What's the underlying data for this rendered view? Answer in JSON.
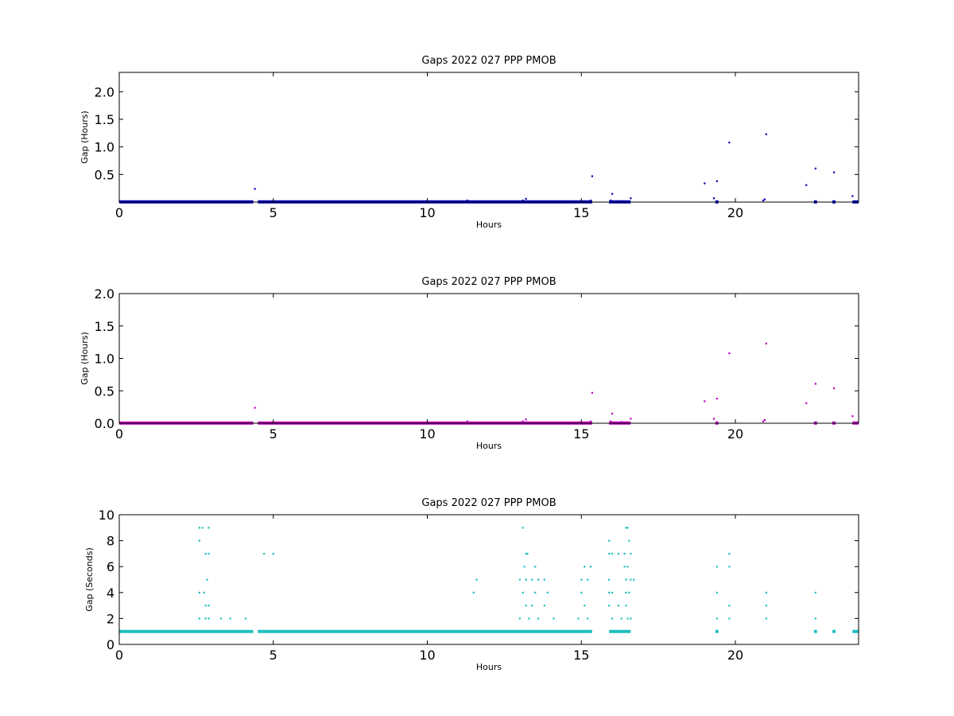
{
  "chart_data": [
    {
      "type": "scatter",
      "title": "Gaps 2022 027 PPP  PMOB",
      "xlabel": "Hours",
      "ylabel": "Gap (Hours)",
      "xlim": [
        0,
        24
      ],
      "ylim": [
        0,
        2.35
      ],
      "xticks": [
        0,
        5,
        10,
        15,
        20
      ],
      "yticks": [
        0.5,
        1.0,
        1.5,
        2.0
      ],
      "ytick_labels": [
        "0.5",
        "1.0",
        "1.5",
        "2.0"
      ],
      "color": "#0000bf",
      "grid": false,
      "baseline_segments": [
        [
          0,
          4.35
        ],
        [
          4.5,
          15.35
        ],
        [
          15.9,
          16.6
        ],
        [
          19.35,
          19.45
        ],
        [
          22.55,
          22.65
        ],
        [
          23.15,
          23.25
        ],
        [
          23.8,
          24
        ]
      ],
      "baseline_value": 0.003,
      "points": [
        [
          4.4,
          0.24
        ],
        [
          11.3,
          0.03
        ],
        [
          13.1,
          0.03
        ],
        [
          13.2,
          0.06
        ],
        [
          15.3,
          0.03
        ],
        [
          15.35,
          0.47
        ],
        [
          15.95,
          0.03
        ],
        [
          16.0,
          0.15
        ],
        [
          16.6,
          0.07
        ],
        [
          19.0,
          0.34
        ],
        [
          19.3,
          0.07
        ],
        [
          19.4,
          0.38
        ],
        [
          19.8,
          1.08
        ],
        [
          20.9,
          0.03
        ],
        [
          21.0,
          1.23
        ],
        [
          22.3,
          0.31
        ],
        [
          22.6,
          0.61
        ],
        [
          23.2,
          0.54
        ],
        [
          23.8,
          0.11
        ],
        [
          16.3,
          0.02
        ],
        [
          20.95,
          0.05
        ]
      ]
    },
    {
      "type": "scatter",
      "title": "Gaps 2022 027 PPP  PMOB",
      "xlabel": "Hours",
      "ylabel": "Gap (Hours)",
      "xlim": [
        0,
        24
      ],
      "ylim": [
        0,
        2.0
      ],
      "xticks": [
        0,
        5,
        10,
        15,
        20
      ],
      "yticks": [
        0.0,
        0.5,
        1.0,
        1.5,
        2.0
      ],
      "ytick_labels": [
        "0.0",
        "0.5",
        "1.0",
        "1.5",
        "2.0"
      ],
      "color": "#bf00bf",
      "grid": false,
      "baseline_segments": [
        [
          0,
          4.35
        ],
        [
          4.5,
          15.35
        ],
        [
          15.9,
          16.6
        ],
        [
          19.35,
          19.45
        ],
        [
          22.55,
          22.65
        ],
        [
          23.15,
          23.25
        ],
        [
          23.8,
          24
        ]
      ],
      "baseline_value": 0.003,
      "points": [
        [
          4.4,
          0.24
        ],
        [
          11.3,
          0.03
        ],
        [
          13.1,
          0.03
        ],
        [
          13.2,
          0.06
        ],
        [
          15.3,
          0.03
        ],
        [
          15.35,
          0.47
        ],
        [
          15.95,
          0.03
        ],
        [
          16.0,
          0.15
        ],
        [
          16.6,
          0.07
        ],
        [
          19.0,
          0.34
        ],
        [
          19.3,
          0.07
        ],
        [
          19.4,
          0.38
        ],
        [
          19.8,
          1.08
        ],
        [
          20.9,
          0.03
        ],
        [
          21.0,
          1.23
        ],
        [
          22.3,
          0.31
        ],
        [
          22.6,
          0.61
        ],
        [
          23.2,
          0.54
        ],
        [
          23.8,
          0.11
        ],
        [
          16.3,
          0.02
        ],
        [
          20.95,
          0.05
        ]
      ]
    },
    {
      "type": "scatter",
      "title": "Gaps 2022 027 PPP  PMOB",
      "xlabel": "Hours",
      "ylabel": "Gap (Seconds)",
      "xlim": [
        0,
        24
      ],
      "ylim": [
        0,
        10
      ],
      "xticks": [
        0,
        5,
        10,
        15,
        20
      ],
      "yticks": [
        0,
        2,
        4,
        6,
        8,
        10
      ],
      "ytick_labels": [
        "0",
        "2",
        "4",
        "6",
        "8",
        "10"
      ],
      "color": "#1fbfbf",
      "grid": false,
      "baseline_segments": [
        [
          0,
          4.35
        ],
        [
          4.5,
          15.35
        ],
        [
          15.9,
          16.6
        ],
        [
          19.35,
          19.45
        ],
        [
          22.55,
          22.65
        ],
        [
          23.15,
          23.25
        ],
        [
          23.8,
          24
        ]
      ],
      "baseline_value": 1,
      "points": [
        [
          2.6,
          9
        ],
        [
          2.7,
          9
        ],
        [
          2.9,
          9
        ],
        [
          2.6,
          8
        ],
        [
          2.8,
          7
        ],
        [
          2.9,
          7
        ],
        [
          2.85,
          5
        ],
        [
          2.6,
          4
        ],
        [
          2.75,
          4
        ],
        [
          2.8,
          3
        ],
        [
          2.9,
          3
        ],
        [
          2.6,
          2
        ],
        [
          2.8,
          2
        ],
        [
          2.9,
          2
        ],
        [
          3.3,
          2
        ],
        [
          3.6,
          2
        ],
        [
          4.1,
          2
        ],
        [
          4.7,
          7
        ],
        [
          5.0,
          7
        ],
        [
          11.5,
          4
        ],
        [
          11.6,
          5
        ],
        [
          13.1,
          9
        ],
        [
          13.2,
          7
        ],
        [
          13.25,
          7
        ],
        [
          13.0,
          5
        ],
        [
          13.15,
          6
        ],
        [
          13.2,
          5
        ],
        [
          13.4,
          5
        ],
        [
          13.6,
          5
        ],
        [
          13.1,
          4
        ],
        [
          13.5,
          4
        ],
        [
          13.9,
          4
        ],
        [
          13.2,
          3
        ],
        [
          13.4,
          3
        ],
        [
          13.8,
          3
        ],
        [
          13.0,
          2
        ],
        [
          13.3,
          2
        ],
        [
          13.6,
          2
        ],
        [
          14.1,
          2
        ],
        [
          13.5,
          6
        ],
        [
          13.8,
          5
        ],
        [
          15.0,
          5
        ],
        [
          15.1,
          6
        ],
        [
          15.3,
          6
        ],
        [
          15.2,
          5
        ],
        [
          15.0,
          4
        ],
        [
          15.1,
          3
        ],
        [
          15.2,
          2
        ],
        [
          14.9,
          2
        ],
        [
          15.9,
          8
        ],
        [
          15.9,
          7
        ],
        [
          16.0,
          7
        ],
        [
          16.2,
          7
        ],
        [
          15.9,
          5
        ],
        [
          15.9,
          4
        ],
        [
          16.0,
          4
        ],
        [
          15.9,
          3
        ],
        [
          16.0,
          2
        ],
        [
          16.2,
          3
        ],
        [
          16.3,
          2
        ],
        [
          16.45,
          9
        ],
        [
          16.5,
          9
        ],
        [
          16.55,
          8
        ],
        [
          16.4,
          7
        ],
        [
          16.6,
          7
        ],
        [
          16.4,
          6
        ],
        [
          16.5,
          6
        ],
        [
          16.45,
          5
        ],
        [
          16.6,
          5
        ],
        [
          16.7,
          5
        ],
        [
          16.45,
          4
        ],
        [
          16.55,
          4
        ],
        [
          16.45,
          3
        ],
        [
          16.5,
          2
        ],
        [
          16.6,
          2
        ],
        [
          19.4,
          6
        ],
        [
          19.4,
          4
        ],
        [
          19.4,
          2
        ],
        [
          19.8,
          7
        ],
        [
          19.8,
          6
        ],
        [
          19.8,
          3
        ],
        [
          19.8,
          2
        ],
        [
          21.0,
          4
        ],
        [
          21.0,
          3
        ],
        [
          21.0,
          2
        ],
        [
          22.6,
          4
        ],
        [
          22.6,
          2
        ]
      ]
    }
  ]
}
